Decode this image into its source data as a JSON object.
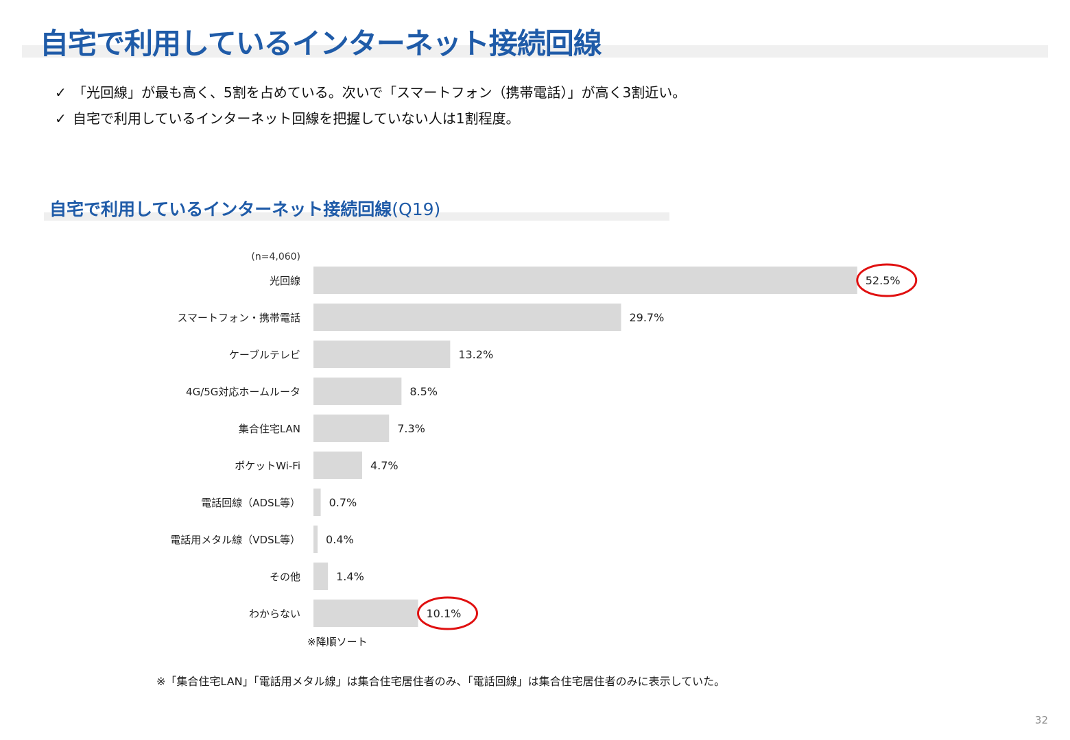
{
  "page": {
    "title": "自宅で利用しているインターネット接続回線",
    "bullets": [
      "「光回線」が最も高く、5割を占めている。次いで「スマートフォン（携帯電話）」が高く3割近い。",
      "自宅で利用しているインターネット回線を把握していない人は1割程度。"
    ],
    "check_mark": "✓",
    "section_title": "自宅で利用しているインターネット接続回線",
    "section_question": "(Q19)",
    "sort_note": "※降順ソート",
    "footnote": "※「集合住宅LAN」「電話用メタル線」は集合住宅居住者のみ、「電話回線」は集合住宅居住者のみに表示していた。",
    "page_number": "32"
  },
  "colors": {
    "title_blue": "#1f5ba8",
    "bar_gray": "#d9d9d9",
    "highlight_red": "#e01010"
  },
  "chart_data": {
    "type": "bar",
    "orientation": "horizontal",
    "sample_note": "(n=4,060)",
    "categories": [
      "光回線",
      "スマートフォン・携帯電話",
      "ケーブルテレビ",
      "4G/5G対応ホームルータ",
      "集合住宅LAN",
      "ポケットWi-Fi",
      "電話回線（ADSL等）",
      "電話用メタル線（VDSL等）",
      "その他",
      "わからない"
    ],
    "values": [
      52.5,
      29.7,
      13.2,
      8.5,
      7.3,
      4.7,
      0.7,
      0.4,
      1.4,
      10.1
    ],
    "labels": [
      "52.5%",
      "29.7%",
      "13.2%",
      "8.5%",
      "7.3%",
      "4.7%",
      "0.7%",
      "0.4%",
      "1.4%",
      "10.1%"
    ],
    "highlighted": [
      "光回線",
      "わからない"
    ],
    "xlim": [
      0,
      100
    ],
    "grid": false
  }
}
